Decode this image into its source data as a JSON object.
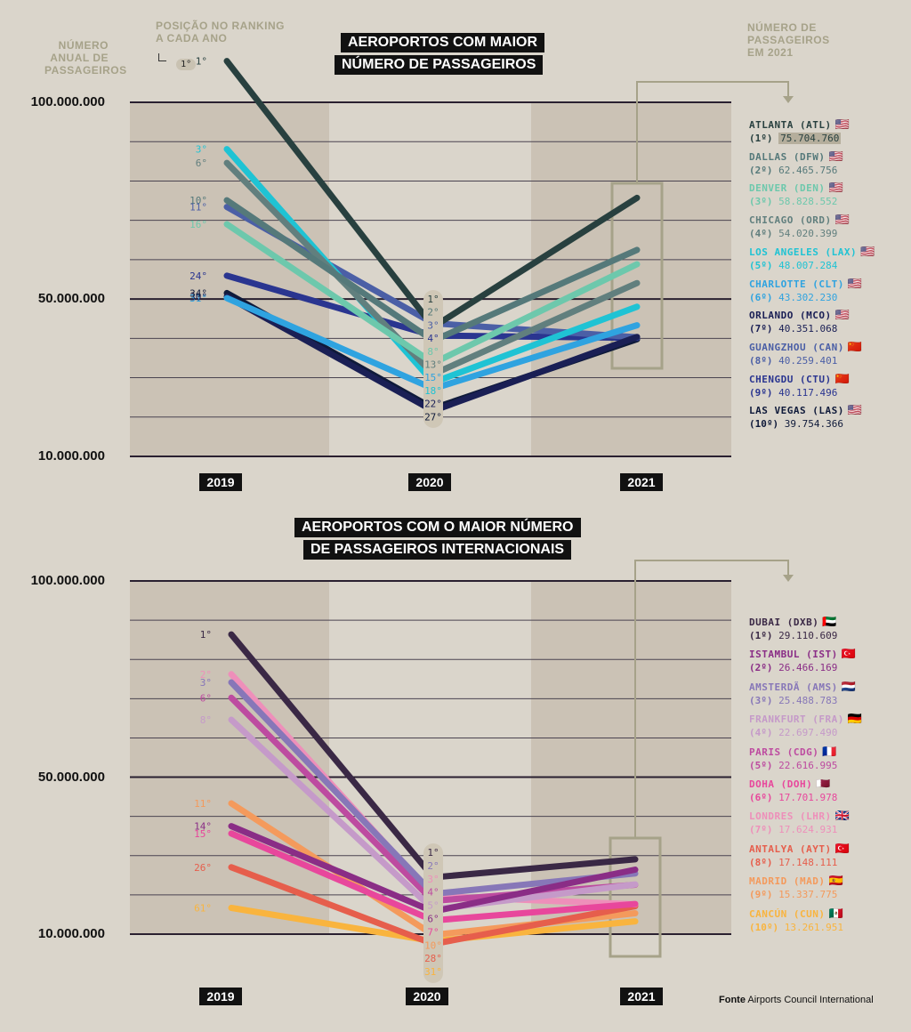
{
  "header": {
    "y_axis_label": "NÚMERO ANUAL DE PASSAGEIROS",
    "rank_label": "POSIÇÃO NO RANKING A CADA ANO",
    "rank_example": "1°",
    "passengers_2021_label": "NÚMERO DE PASSAGEIROS EM 2021"
  },
  "source": {
    "label": "Fonte",
    "text": "Airports Council International"
  },
  "colors": {
    "background": "#dad5cb",
    "shade": "#cbc2b5",
    "axis": "#2a2030",
    "connector": "#a6a289"
  },
  "chart_data": [
    {
      "type": "line",
      "title_line1": "AEROPORTOS COM MAIOR",
      "title_line2": "NÚMERO DE PASSAGEIROS",
      "categories": [
        "2019",
        "2020",
        "2021"
      ],
      "y_ticks": [
        "100.000.000",
        "50.000.000",
        "10.000.000"
      ],
      "ylim": [
        10000000,
        100000000
      ],
      "series": [
        {
          "name": "ATLANTA (ATL)",
          "ranks": [
            "1°",
            "1°",
            "1º"
          ],
          "values": [
            110500000,
            42900000,
            75704760
          ],
          "value_label": "75.704.760",
          "color": "#28403f",
          "flag": "🇺🇸"
        },
        {
          "name": "DALLAS (DFW)",
          "ranks": [
            "10°",
            "2°",
            "2º"
          ],
          "values": [
            75100000,
            39400000,
            62465756
          ],
          "value_label": "62.465.756",
          "color": "#55797a",
          "flag": "🇺🇸"
        },
        {
          "name": "DENVER (DEN)",
          "ranks": [
            "16°",
            "8°",
            "3º"
          ],
          "values": [
            69000000,
            33700000,
            58828552
          ],
          "value_label": "58.828.552",
          "color": "#6dc8ac",
          "flag": "🇺🇸"
        },
        {
          "name": "CHICAGO (ORD)",
          "ranks": [
            "6°",
            "13°",
            "4º"
          ],
          "values": [
            84600000,
            30900000,
            54020399
          ],
          "value_label": "54.020.399",
          "color": "#617f7e",
          "flag": "🇺🇸"
        },
        {
          "name": "LOS ANGELES (LAX)",
          "ranks": [
            "3°",
            "18°",
            "5º"
          ],
          "values": [
            88100000,
            28800000,
            48007284
          ],
          "value_label": "48.007.284",
          "color": "#1fc3d4",
          "flag": "🇺🇸"
        },
        {
          "name": "CHARLOTTE (CLT)",
          "ranks": [
            "31°",
            "15°",
            "6º"
          ],
          "values": [
            50200000,
            27200000,
            43302230
          ],
          "value_label": "43.302.230",
          "color": "#2fa3e0",
          "flag": "🇺🇸"
        },
        {
          "name": "ORLANDO (MCO)",
          "ranks": [
            "30°",
            "22°",
            "7º"
          ],
          "values": [
            50600000,
            21600000,
            40351068
          ],
          "value_label": "40.351.068",
          "color": "#1a1f55",
          "flag": "🇺🇸"
        },
        {
          "name": "GUANGZHOU (CAN)",
          "ranks": [
            "11°",
            "3°",
            "8º"
          ],
          "values": [
            73400000,
            43800000,
            40259401
          ],
          "value_label": "40.259.401",
          "color": "#4b5fa6",
          "flag": "🇨🇳"
        },
        {
          "name": "CHENGDU (CTU)",
          "ranks": [
            "24°",
            "4°",
            "9º"
          ],
          "values": [
            55900000,
            40700000,
            40117496
          ],
          "value_label": "40.117.496",
          "color": "#2a3590",
          "flag": "🇨🇳"
        },
        {
          "name": "LAS VEGAS (LAS)",
          "ranks": [
            "34°",
            "27°",
            "10º"
          ],
          "values": [
            51500000,
            22200000,
            39754366
          ],
          "value_label": "39.754.366",
          "color": "#0f1a3a",
          "flag": "🇺🇸"
        }
      ]
    },
    {
      "type": "line",
      "title_line1": "AEROPORTOS COM O MAIOR NÚMERO",
      "title_line2": "DE PASSAGEIROS INTERNACIONAIS",
      "categories": [
        "2019",
        "2020",
        "2021"
      ],
      "y_ticks": [
        "100.000.000",
        "50.000.000",
        "10.000.000"
      ],
      "ylim": [
        10000000,
        100000000
      ],
      "series": [
        {
          "name": "DUBAI (DXB)",
          "ranks": [
            "1°",
            "1°",
            "1º"
          ],
          "values": [
            86400000,
            24500000,
            29110609
          ],
          "value_label": "29.110.609",
          "color": "#3a2845",
          "flag": "🇦🇪"
        },
        {
          "name": "ISTAMBUL (IST)",
          "ranks": [
            "14°",
            "6°",
            "2º"
          ],
          "values": [
            37600000,
            15800000,
            26466169
          ],
          "value_label": "26.466.169",
          "color": "#8a2d86",
          "flag": "🇹🇷"
        },
        {
          "name": "AMSTERDÃ (AMS)",
          "ranks": [
            "3°",
            "2°",
            "3º"
          ],
          "values": [
            74200000,
            20300000,
            25488783
          ],
          "value_label": "25.488.783",
          "color": "#8777b8",
          "flag": "🇳🇱"
        },
        {
          "name": "FRANKFURT (FRA)",
          "ranks": [
            "8°",
            "5°",
            "4º"
          ],
          "values": [
            64700000,
            16300000,
            22697490
          ],
          "value_label": "22.697.490",
          "color": "#c59ac9",
          "flag": "🇩🇪"
        },
        {
          "name": "PARIS (CDG)",
          "ranks": [
            "6°",
            "4°",
            "5º"
          ],
          "values": [
            70300000,
            18500000,
            22616995
          ],
          "value_label": "22.616.995",
          "color": "#bd4ba0",
          "flag": "🇫🇷"
        },
        {
          "name": "DOHA (DOH)",
          "ranks": [
            "15°",
            "7°",
            "6º"
          ],
          "values": [
            35700000,
            13500000,
            17701978
          ],
          "value_label": "17.701.978",
          "color": "#e8479c",
          "flag": "🇶🇦"
        },
        {
          "name": "LONDRES (LHR)",
          "ranks": [
            "2°",
            "3°",
            "7º"
          ],
          "values": [
            76300000,
            19700000,
            17624931
          ],
          "value_label": "17.624.931",
          "color": "#ee8fba",
          "flag": "🇬🇧"
        },
        {
          "name": "ANTALYA (AYT)",
          "ranks": [
            "26°",
            "28°",
            "8º"
          ],
          "values": [
            27100000,
            7500000,
            17148111
          ],
          "value_label": "17.148.111",
          "color": "#e65e4c",
          "flag": "🇹🇷"
        },
        {
          "name": "MADRID (MAD)",
          "ranks": [
            "11°",
            "10°",
            "9º"
          ],
          "values": [
            43400000,
            9800000,
            15337775
          ],
          "value_label": "15.337.775",
          "color": "#f49a5c",
          "flag": "🇪🇸"
        },
        {
          "name": "CANCÚN (CUN)",
          "ranks": [
            "61°",
            "31°",
            "10º"
          ],
          "values": [
            16700000,
            8200000,
            13261951
          ],
          "value_label": "13.261.951",
          "color": "#f9b43e",
          "flag": "🇲🇽"
        }
      ]
    }
  ]
}
